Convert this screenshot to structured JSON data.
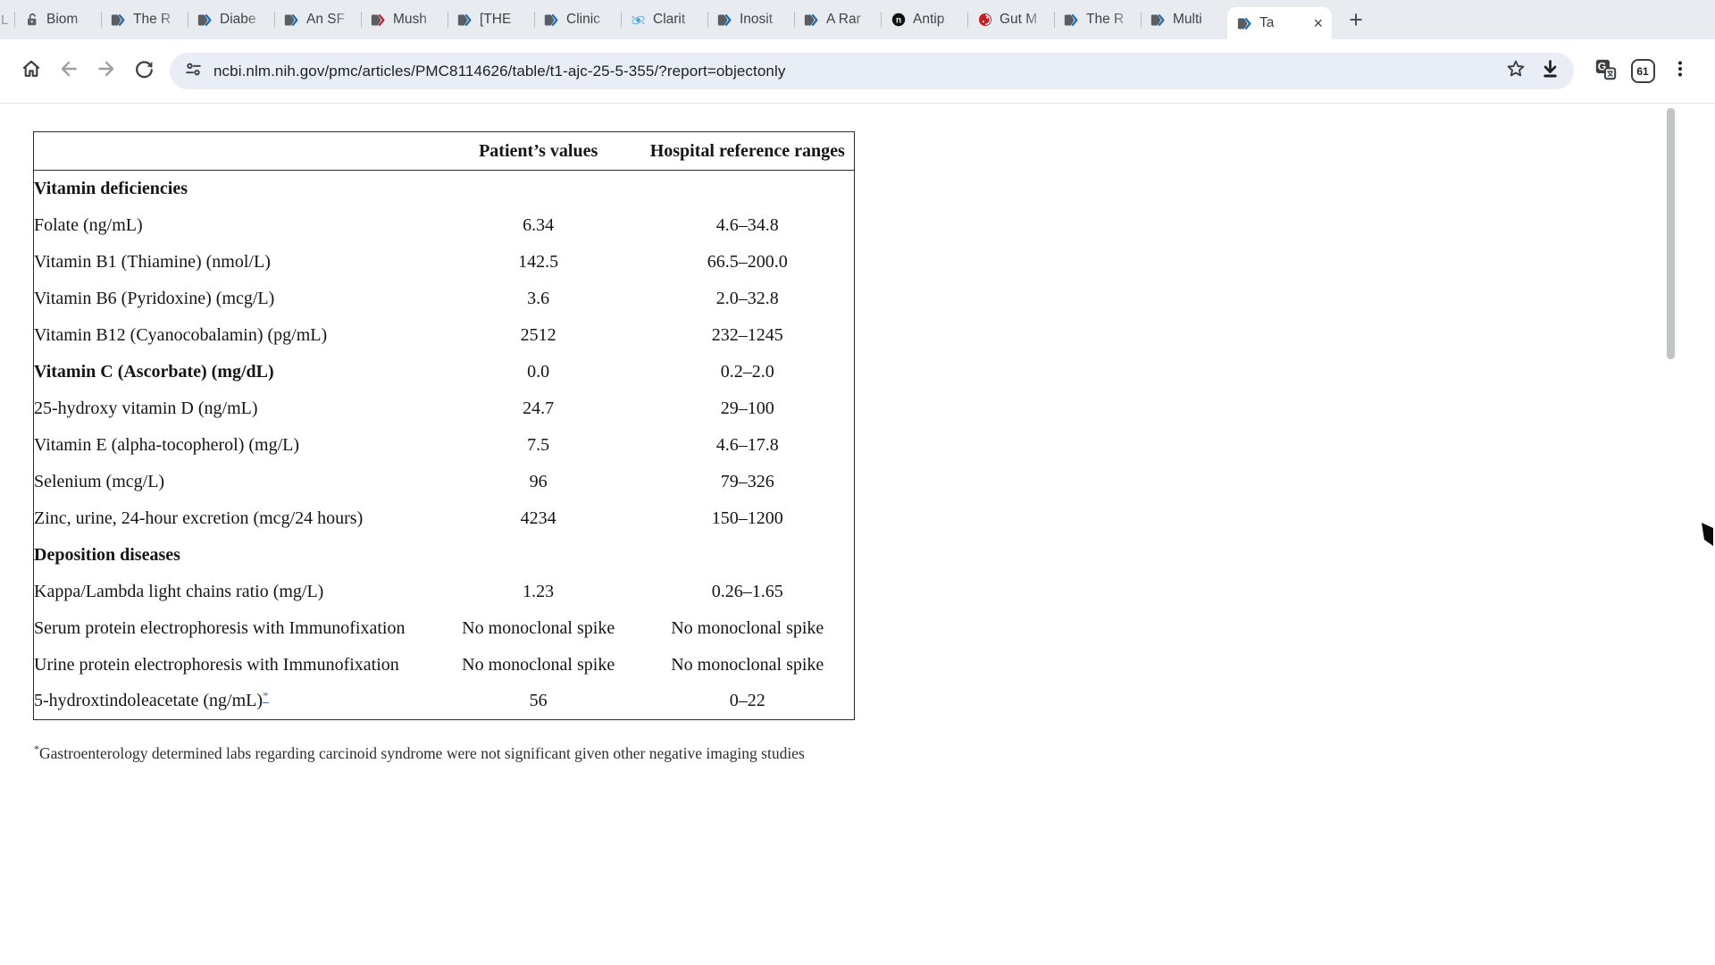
{
  "browser": {
    "tab_overflow_fragment": "L",
    "tabs": [
      {
        "label": "Biom",
        "icon": "lock-open"
      },
      {
        "label": "The R",
        "icon": "pmc-blue"
      },
      {
        "label": "Diabe",
        "icon": "pmc-blue"
      },
      {
        "label": "An SF",
        "icon": "pmc-blue"
      },
      {
        "label": "Mush",
        "icon": "pmc-red"
      },
      {
        "label": "[THE",
        "icon": "pmc-blue"
      },
      {
        "label": "Clinic",
        "icon": "pmc-blue"
      },
      {
        "label": "Clarit",
        "icon": "clarity"
      },
      {
        "label": "Inosit",
        "icon": "pmc-blue"
      },
      {
        "label": "A Rar",
        "icon": "pmc-blue"
      },
      {
        "label": "Antip",
        "icon": "n-circle"
      },
      {
        "label": "Gut M",
        "icon": "red-circle"
      },
      {
        "label": "The R",
        "icon": "pmc-blue"
      },
      {
        "label": "Multi",
        "icon": "pmc-blue"
      },
      {
        "label": "Ta",
        "icon": "pmc-blue",
        "active": true,
        "close_label": "×"
      }
    ],
    "new_tab_label": "+",
    "url": "ncbi.nlm.nih.gov/pmc/articles/PMC8114626/table/t1-ajc-25-5-355/?report=objectonly",
    "extension_badge": "61"
  },
  "page": {
    "table": {
      "columns": [
        "",
        "Patient’s values",
        "Hospital reference ranges"
      ],
      "rows": [
        {
          "type": "section",
          "label": "Vitamin deficiencies"
        },
        {
          "type": "data",
          "label": "Folate (ng/mL)",
          "patient": "6.34",
          "range": "4.6–34.8"
        },
        {
          "type": "data",
          "label": "Vitamin B1 (Thiamine) (nmol/L)",
          "patient": "142.5",
          "range": "66.5–200.0"
        },
        {
          "type": "data",
          "label": "Vitamin B6 (Pyridoxine) (mcg/L)",
          "patient": "3.6",
          "range": "2.0–32.8"
        },
        {
          "type": "data",
          "label": "Vitamin B12 (Cyanocobalamin) (pg/mL)",
          "patient": "2512",
          "range": "232–1245"
        },
        {
          "type": "data",
          "label": "Vitamin C (Ascorbate) (mg/dL)",
          "bold": true,
          "patient": "0.0",
          "range": "0.2–2.0"
        },
        {
          "type": "data",
          "label": "25-hydroxy vitamin D (ng/mL)",
          "patient": "24.7",
          "range": "29–100"
        },
        {
          "type": "data",
          "label": "Vitamin E (alpha-tocopherol) (mg/L)",
          "patient": "7.5",
          "range": "4.6–17.8"
        },
        {
          "type": "data",
          "label": "Selenium (mcg/L)",
          "patient": "96",
          "range": "79–326"
        },
        {
          "type": "data",
          "label": "Zinc, urine, 24-hour excretion (mcg/24 hours)",
          "patient": "4234",
          "range": "150–1200"
        },
        {
          "type": "section",
          "label": "Deposition diseases"
        },
        {
          "type": "data",
          "label": "Kappa/Lambda light chains ratio (mg/L)",
          "patient": "1.23",
          "range": "0.26–1.65"
        },
        {
          "type": "data",
          "label": "Serum protein electrophoresis with Immunofixation",
          "patient": "No monoclonal spike",
          "range": "No monoclonal spike"
        },
        {
          "type": "data",
          "label": "Urine protein electrophoresis with Immunofixation",
          "patient": "No monoclonal spike",
          "range": "No monoclonal spike"
        },
        {
          "type": "data",
          "label": "5-hydroxtindoleacetate (ng/mL)",
          "marker": "*",
          "patient": "56",
          "range": "0–22"
        }
      ],
      "footnote_marker": "*",
      "footnote_text": "Gastroenterology determined labs regarding carcinoid syndrome were not significant given other negative imaging studies"
    }
  },
  "colors": {
    "pmc_chevron_blue": "#1f6cb5",
    "pmc_chevron_red": "#c2203a",
    "omnibox_bg": "#e9eef6",
    "tabstrip_bg": "#e8ebef",
    "footnote_link_blue": "#4a74b8",
    "scrollbar_thumb": "#c2c5c8"
  }
}
